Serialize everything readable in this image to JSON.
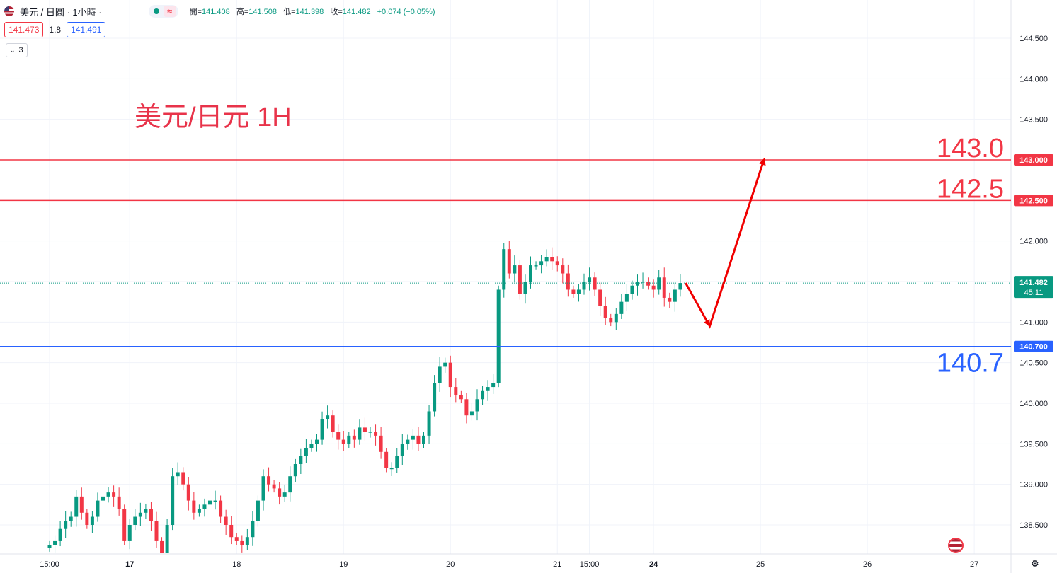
{
  "header": {
    "symbol": "美元 / 日圓 · 1小時 ·",
    "wave_icon": "≈",
    "ohlc": [
      {
        "label": "開=",
        "value": "141.408"
      },
      {
        "label": "高=",
        "value": "141.508"
      },
      {
        "label": "低=",
        "value": "141.398"
      },
      {
        "label": "收=",
        "value": "141.482"
      },
      {
        "label": "",
        "value": "+0.074 (+0.05%)"
      }
    ]
  },
  "trade": {
    "sell": "141.473",
    "spread": "1.8",
    "buy": "141.491"
  },
  "indicators": {
    "count": "3"
  },
  "icons": {
    "flag": "usd-flag-icon",
    "settings": "gear-icon",
    "currency": "usd-currency-icon"
  },
  "colors": {
    "up": "#089981",
    "down": "#f23645",
    "resistance": "#f23645",
    "support": "#2962ff",
    "arrow": "#f00000"
  },
  "chart_data": {
    "type": "candlestick",
    "title": "美元/日元 1H",
    "ylim": [
      138.2,
      144.7
    ],
    "y_ticks": [
      "144.500",
      "144.000",
      "143.500",
      "143.000",
      "142.500",
      "142.000",
      "141.500",
      "141.000",
      "140.500",
      "140.000",
      "139.500",
      "139.000",
      "138.500"
    ],
    "x_ticks": [
      {
        "label": "15:00",
        "i": 0,
        "bold": false
      },
      {
        "label": "17",
        "i": 15,
        "bold": true
      },
      {
        "label": "18",
        "i": 35,
        "bold": false
      },
      {
        "label": "19",
        "i": 55,
        "bold": false
      },
      {
        "label": "20",
        "i": 75,
        "bold": false
      },
      {
        "label": "21",
        "i": 95,
        "bold": false
      },
      {
        "label": "15:00",
        "i": 101,
        "bold": false
      },
      {
        "label": "24",
        "i": 113,
        "bold": true
      },
      {
        "label": "25",
        "i": 133,
        "bold": false
      },
      {
        "label": "26",
        "i": 153,
        "bold": false
      },
      {
        "label": "27",
        "i": 173,
        "bold": false
      }
    ],
    "closes": [
      138.25,
      138.3,
      138.45,
      138.55,
      138.6,
      138.85,
      138.65,
      138.5,
      138.6,
      138.8,
      138.85,
      138.9,
      138.85,
      138.7,
      138.3,
      138.5,
      138.6,
      138.65,
      138.7,
      138.55,
      138.3,
      138.1,
      138.5,
      139.1,
      139.15,
      139.0,
      138.8,
      138.65,
      138.7,
      138.75,
      138.8,
      138.8,
      138.6,
      138.5,
      138.35,
      138.3,
      138.25,
      138.35,
      138.55,
      138.8,
      139.1,
      139.0,
      138.95,
      138.85,
      138.9,
      139.1,
      139.25,
      139.35,
      139.45,
      139.5,
      139.55,
      139.8,
      139.85,
      139.65,
      139.55,
      139.5,
      139.6,
      139.55,
      139.7,
      139.65,
      139.65,
      139.6,
      139.4,
      139.2,
      139.2,
      139.35,
      139.5,
      139.55,
      139.6,
      139.5,
      139.6,
      139.9,
      140.25,
      140.45,
      140.5,
      140.2,
      140.1,
      140.05,
      139.85,
      139.9,
      140.05,
      140.15,
      140.2,
      140.25,
      141.4,
      141.9,
      141.6,
      141.7,
      141.35,
      141.5,
      141.7,
      141.7,
      141.75,
      141.8,
      141.75,
      141.7,
      141.6,
      141.4,
      141.35,
      141.4,
      141.5,
      141.55,
      141.4,
      141.2,
      141.05,
      141.0,
      141.1,
      141.25,
      141.35,
      141.45,
      141.5,
      141.5,
      141.45,
      141.4,
      141.55,
      141.3,
      141.25,
      141.4,
      141.482
    ],
    "resistance": [
      143.0,
      142.5
    ],
    "support": [
      140.7
    ],
    "level_labels": [
      "143.0",
      "142.5",
      "140.7"
    ],
    "axis_labels": [
      "143.000",
      "142.500",
      "140.700"
    ],
    "last_price": "141.482",
    "countdown": "45:11",
    "projection": {
      "path": [
        [
          141.482,
          0
        ],
        [
          140.95,
          4
        ],
        [
          143.0,
          13
        ]
      ]
    }
  }
}
